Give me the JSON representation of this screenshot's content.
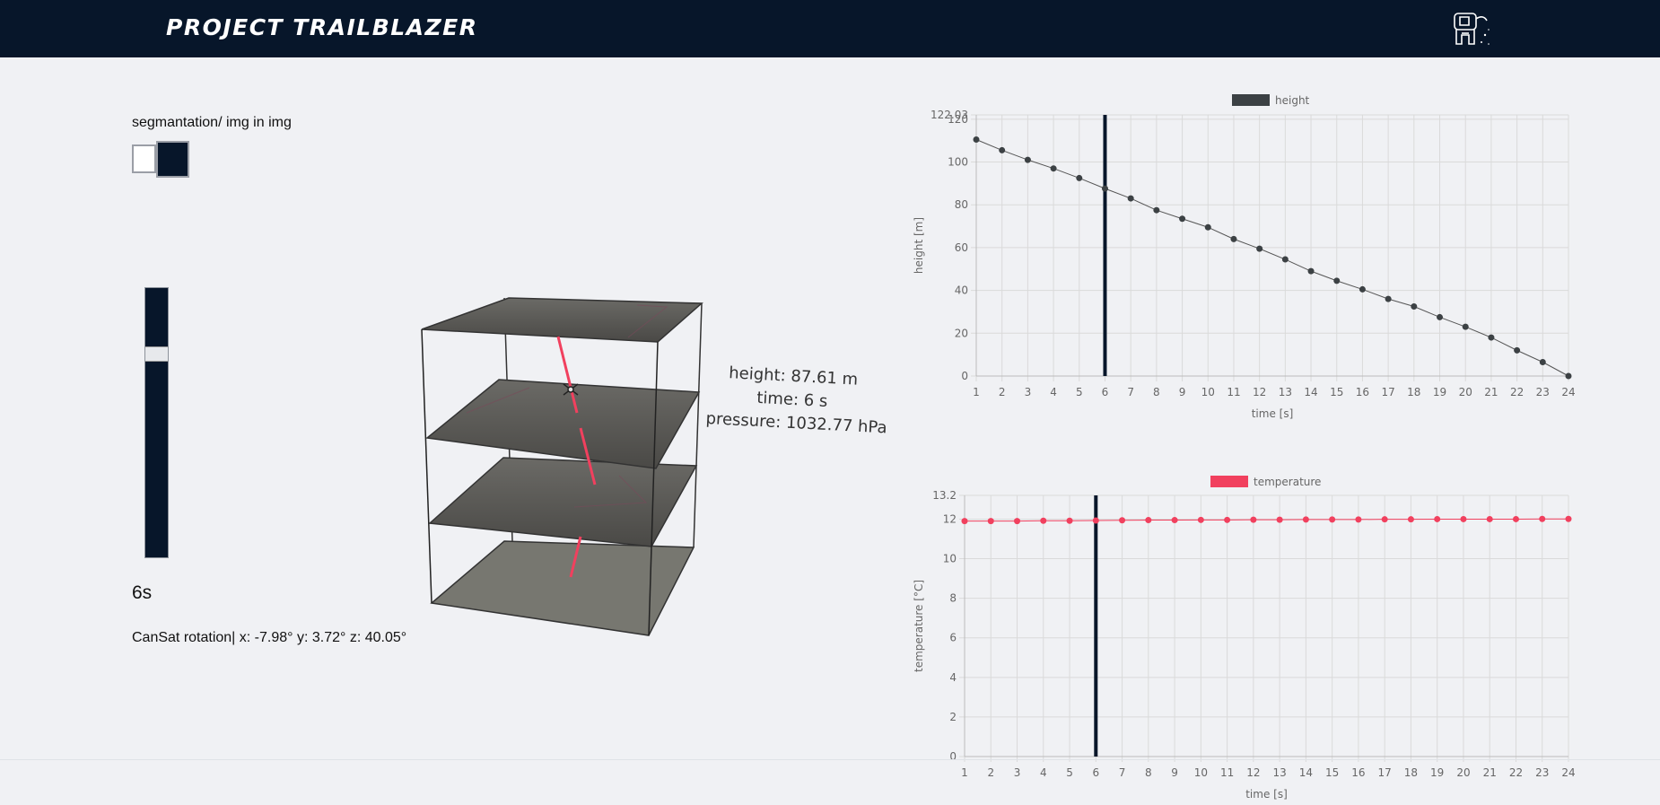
{
  "header": {
    "title": "PROJECT TRAILBLAZER",
    "logo_icon": "astronaut-icon"
  },
  "colors": {
    "navy": "#07162a",
    "height_line": "#3c4144",
    "temperature": "#f1405e"
  },
  "controls": {
    "segmentation_label": "segmantation/ img in img",
    "time_display": "6s",
    "slider_value_fraction": 0.23,
    "rotation_text": "CanSat rotation| x: -7.98° y: 3.72° z: 40.05°"
  },
  "scene": {
    "height_text": "height: 87.61 m",
    "time_text": "time: 6 s",
    "pressure_text": "pressure: 1032.77 hPa"
  },
  "chart_data": [
    {
      "type": "line",
      "x": [
        1,
        2,
        3,
        4,
        5,
        6,
        7,
        8,
        9,
        10,
        11,
        12,
        13,
        14,
        15,
        16,
        17,
        18,
        19,
        20,
        21,
        22,
        23,
        24
      ],
      "series": [
        {
          "name": "height",
          "values": [
            110.5,
            105.5,
            101,
            97,
            92.5,
            87.6,
            83,
            77.5,
            73.5,
            69.5,
            64,
            59.5,
            54.5,
            49,
            44.5,
            40.5,
            36,
            32.5,
            27.5,
            23,
            18,
            12,
            6.5,
            0
          ]
        }
      ],
      "xlabel": "time [s]",
      "ylabel": "height [m]",
      "ylim": [
        0,
        122.03
      ],
      "yticks": [
        "0",
        "20",
        "40",
        "60",
        "80",
        "100",
        "120"
      ],
      "ymax_label": "122.03",
      "marker_x": 6,
      "grid": true,
      "legend": "top"
    },
    {
      "type": "line",
      "x": [
        1,
        2,
        3,
        4,
        5,
        6,
        7,
        8,
        9,
        10,
        11,
        12,
        13,
        14,
        15,
        16,
        17,
        18,
        19,
        20,
        21,
        22,
        23,
        24
      ],
      "series": [
        {
          "name": "temperature",
          "values": [
            11.9,
            11.9,
            11.9,
            11.92,
            11.92,
            11.93,
            11.94,
            11.95,
            11.95,
            11.96,
            11.96,
            11.97,
            11.97,
            11.98,
            11.98,
            11.98,
            11.99,
            11.99,
            12.0,
            12.0,
            12.0,
            12.0,
            12.01,
            12.01
          ]
        }
      ],
      "xlabel": "time [s]",
      "ylabel": "temperature [°C]",
      "ylim": [
        0,
        13.2
      ],
      "yticks": [
        "0",
        "2",
        "4",
        "6",
        "8",
        "10",
        "12"
      ],
      "ymax_label": "13.2",
      "marker_x": 6,
      "grid": true,
      "legend": "top"
    }
  ]
}
